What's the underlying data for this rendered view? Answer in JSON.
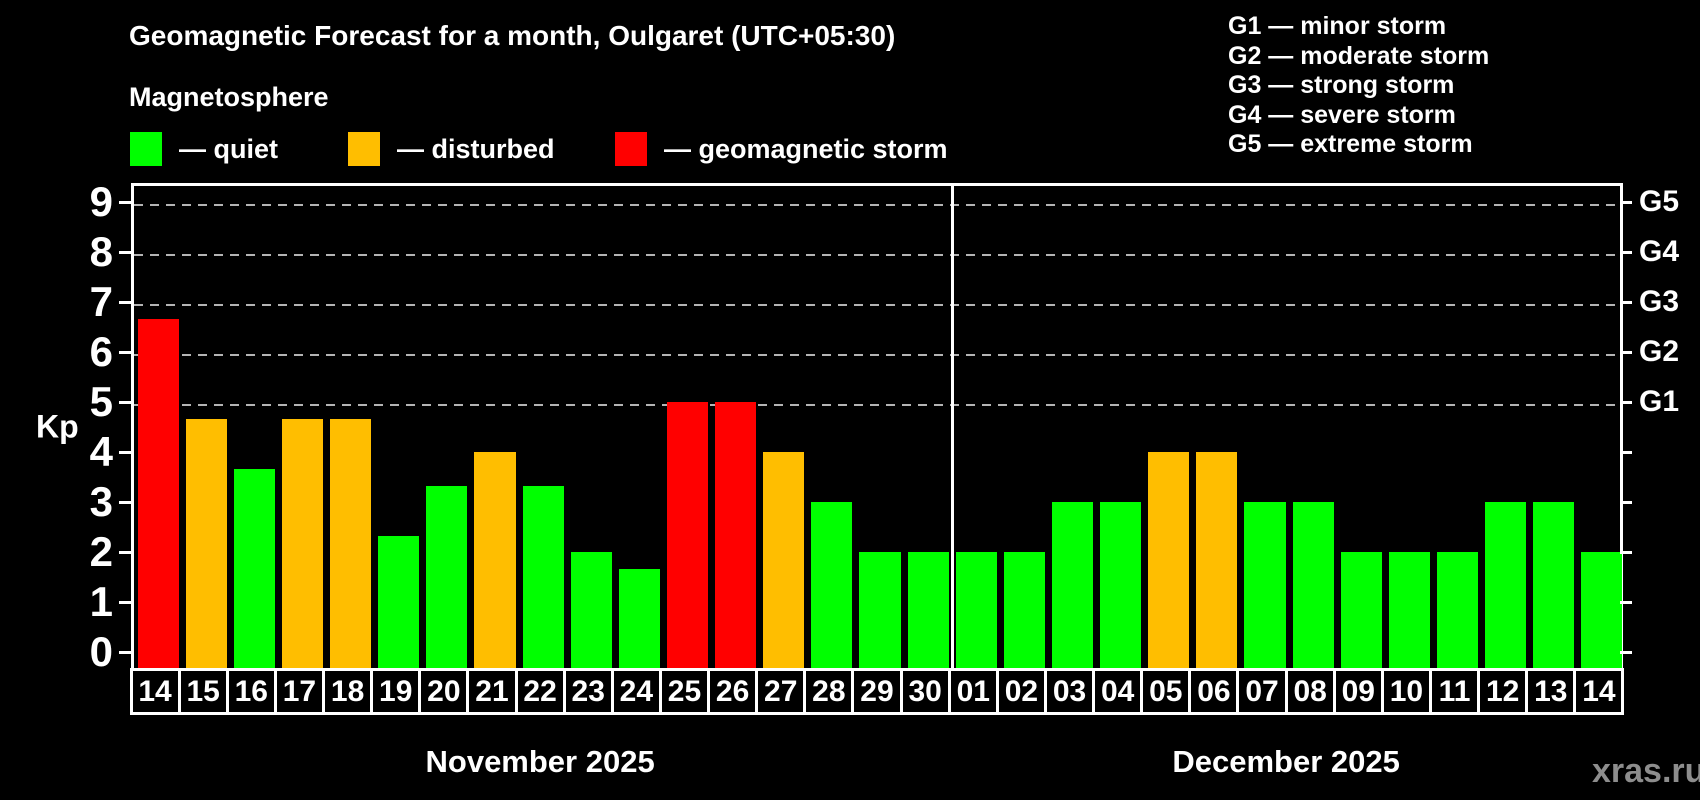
{
  "title": "Geomagnetic Forecast for a month, Oulgaret (UTC+05:30)",
  "subtitle": "Magnetosphere",
  "watermark": "xras.ru",
  "colors": {
    "quiet": "#00ff00",
    "disturbed": "#ffbe00",
    "storm": "#ff0000",
    "axis": "#ffffff",
    "gridline": "#b4b4b4",
    "watermark": "#8d8d8d",
    "background": "#000000"
  },
  "legend": {
    "items": [
      {
        "status": "quiet",
        "label": "— quiet"
      },
      {
        "status": "disturbed",
        "label": "— disturbed"
      },
      {
        "status": "storm",
        "label": "— geomagnetic storm"
      }
    ]
  },
  "storm_legend": {
    "lines": [
      "G1 — minor storm",
      "G2 — moderate storm",
      "G3 — strong storm",
      "G4 — severe storm",
      "G5 — extreme storm"
    ]
  },
  "axis": {
    "y_label": "Kp",
    "y_ticks": [
      0,
      1,
      2,
      3,
      4,
      5,
      6,
      7,
      8,
      9
    ],
    "g_scale": [
      {
        "label": "G1",
        "kp": 5
      },
      {
        "label": "G2",
        "kp": 6
      },
      {
        "label": "G3",
        "kp": 7
      },
      {
        "label": "G4",
        "kp": 8
      },
      {
        "label": "G5",
        "kp": 9
      }
    ]
  },
  "chart_data": {
    "type": "bar",
    "title": "Geomagnetic Forecast for a month, Oulgaret (UTC+05:30)",
    "xlabel": "",
    "ylabel": "Kp",
    "ylim": [
      0,
      9
    ],
    "grid": "horizontal dashed gridlines at Kp 5,6,7,8,9 (G1–G5)",
    "legend_position": "top-left",
    "months": [
      {
        "label": "November 2025",
        "start_index": 0,
        "num_days": 17
      },
      {
        "label": "December 2025",
        "start_index": 17,
        "num_days": 14
      }
    ],
    "bars": [
      {
        "day": "14",
        "kp": 6.67,
        "status": "storm"
      },
      {
        "day": "15",
        "kp": 4.67,
        "status": "disturbed"
      },
      {
        "day": "16",
        "kp": 3.67,
        "status": "quiet"
      },
      {
        "day": "17",
        "kp": 4.67,
        "status": "disturbed"
      },
      {
        "day": "18",
        "kp": 4.67,
        "status": "disturbed"
      },
      {
        "day": "19",
        "kp": 2.33,
        "status": "quiet"
      },
      {
        "day": "20",
        "kp": 3.33,
        "status": "quiet"
      },
      {
        "day": "21",
        "kp": 4,
        "status": "disturbed"
      },
      {
        "day": "22",
        "kp": 3.33,
        "status": "quiet"
      },
      {
        "day": "23",
        "kp": 2,
        "status": "quiet"
      },
      {
        "day": "24",
        "kp": 1.67,
        "status": "quiet"
      },
      {
        "day": "25",
        "kp": 5,
        "status": "storm"
      },
      {
        "day": "26",
        "kp": 5,
        "status": "storm"
      },
      {
        "day": "27",
        "kp": 4,
        "status": "disturbed"
      },
      {
        "day": "28",
        "kp": 3,
        "status": "quiet"
      },
      {
        "day": "29",
        "kp": 2,
        "status": "quiet"
      },
      {
        "day": "30",
        "kp": 2,
        "status": "quiet"
      },
      {
        "day": "01",
        "kp": 2,
        "status": "quiet"
      },
      {
        "day": "02",
        "kp": 2,
        "status": "quiet"
      },
      {
        "day": "03",
        "kp": 3,
        "status": "quiet"
      },
      {
        "day": "04",
        "kp": 3,
        "status": "quiet"
      },
      {
        "day": "05",
        "kp": 4,
        "status": "disturbed"
      },
      {
        "day": "06",
        "kp": 4,
        "status": "disturbed"
      },
      {
        "day": "07",
        "kp": 3,
        "status": "quiet"
      },
      {
        "day": "08",
        "kp": 3,
        "status": "quiet"
      },
      {
        "day": "09",
        "kp": 2,
        "status": "quiet"
      },
      {
        "day": "10",
        "kp": 2,
        "status": "quiet"
      },
      {
        "day": "11",
        "kp": 2,
        "status": "quiet"
      },
      {
        "day": "12",
        "kp": 3,
        "status": "quiet"
      },
      {
        "day": "13",
        "kp": 3,
        "status": "quiet"
      },
      {
        "day": "14",
        "kp": 2,
        "status": "quiet"
      }
    ]
  }
}
